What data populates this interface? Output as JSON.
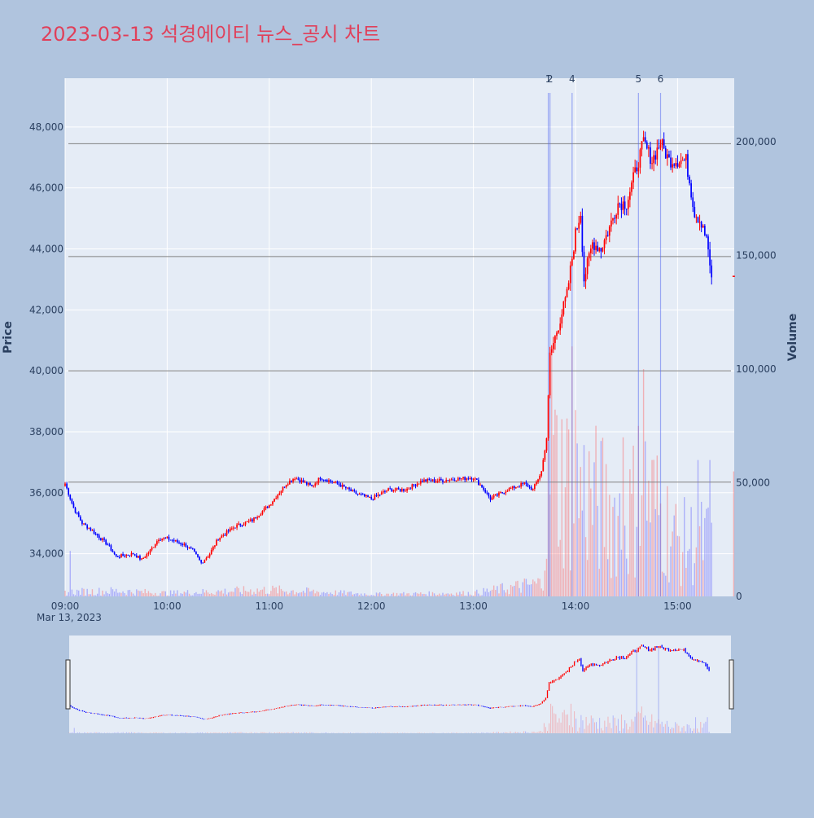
{
  "chart_data": {
    "type": "candlestick",
    "title": "2023-03-13 석경에이티 뉴스_공시 차트",
    "date_label": "Mar 13, 2023",
    "ylabel": "Price",
    "y2label": "Volume",
    "ylim": [
      32600,
      49600
    ],
    "y2lim": [
      0,
      228000
    ],
    "time_range": [
      "09:00",
      "15:33"
    ],
    "x_ticks": [
      "09:00",
      "10:00",
      "11:00",
      "12:00",
      "13:00",
      "14:00",
      "15:00"
    ],
    "y_ticks": [
      "34,000",
      "36,000",
      "38,000",
      "40,000",
      "42,000",
      "44,000",
      "46,000",
      "48,000"
    ],
    "y_tick_values": [
      34000,
      36000,
      38000,
      40000,
      42000,
      44000,
      46000,
      48000
    ],
    "y2_ticks": [
      "0",
      "50,000",
      "100,000",
      "150,000",
      "200,000"
    ],
    "y2_tick_values": [
      0,
      50000,
      100000,
      150000,
      200000
    ],
    "up_color": "#ff0000",
    "down_color": "#0000ff",
    "price_keypoints": [
      [
        "09:00",
        36300
      ],
      [
        "09:05",
        35500
      ],
      [
        "09:10",
        35000
      ],
      [
        "09:15",
        34800
      ],
      [
        "09:25",
        34300
      ],
      [
        "09:30",
        33900
      ],
      [
        "09:40",
        34000
      ],
      [
        "09:45",
        33800
      ],
      [
        "09:50",
        34100
      ],
      [
        "09:55",
        34500
      ],
      [
        "10:00",
        34500
      ],
      [
        "10:10",
        34300
      ],
      [
        "10:15",
        34100
      ],
      [
        "10:20",
        33700
      ],
      [
        "10:25",
        34000
      ],
      [
        "10:30",
        34500
      ],
      [
        "10:40",
        34900
      ],
      [
        "10:50",
        35100
      ],
      [
        "11:00",
        35600
      ],
      [
        "11:10",
        36300
      ],
      [
        "11:15",
        36500
      ],
      [
        "11:25",
        36200
      ],
      [
        "11:30",
        36500
      ],
      [
        "11:40",
        36300
      ],
      [
        "11:50",
        36000
      ],
      [
        "12:00",
        35800
      ],
      [
        "12:10",
        36100
      ],
      [
        "12:20",
        36100
      ],
      [
        "12:30",
        36400
      ],
      [
        "12:40",
        36400
      ],
      [
        "13:00",
        36500
      ],
      [
        "13:05",
        36200
      ],
      [
        "13:10",
        35800
      ],
      [
        "13:20",
        36100
      ],
      [
        "13:30",
        36300
      ],
      [
        "13:35",
        36100
      ],
      [
        "13:40",
        36700
      ],
      [
        "13:43",
        37800
      ],
      [
        "13:45",
        40500
      ],
      [
        "13:50",
        41500
      ],
      [
        "13:55",
        42500
      ],
      [
        "14:00",
        44500
      ],
      [
        "14:03",
        45200
      ],
      [
        "14:05",
        43000
      ],
      [
        "14:10",
        44200
      ],
      [
        "14:15",
        44000
      ],
      [
        "14:20",
        44700
      ],
      [
        "14:25",
        45500
      ],
      [
        "14:30",
        45500
      ],
      [
        "14:35",
        46500
      ],
      [
        "14:40",
        47500
      ],
      [
        "14:45",
        46900
      ],
      [
        "14:50",
        47500
      ],
      [
        "14:55",
        46900
      ],
      [
        "15:00",
        46900
      ],
      [
        "15:05",
        46900
      ],
      [
        "15:10",
        45200
      ],
      [
        "15:15",
        44800
      ],
      [
        "15:18",
        44000
      ],
      [
        "15:20",
        42900
      ]
    ],
    "last_price": 43100,
    "news_markers": [
      {
        "label": "1",
        "time": "13:44"
      },
      {
        "label": "2",
        "time": "13:45"
      },
      {
        "label": "4",
        "time": "13:58"
      },
      {
        "label": "5",
        "time": "14:37"
      },
      {
        "label": "6",
        "time": "14:50"
      }
    ],
    "horizontal_levels": [
      36350,
      40000,
      43750,
      47450
    ],
    "volume_profile": [
      [
        "09:00",
        2000
      ],
      [
        "09:30",
        2500
      ],
      [
        "10:00",
        1500
      ],
      [
        "11:00",
        3000
      ],
      [
        "12:00",
        1000
      ],
      [
        "13:00",
        1500
      ],
      [
        "13:40",
        6000
      ],
      [
        "13:45",
        60000
      ],
      [
        "14:00",
        50000
      ],
      [
        "14:30",
        35000
      ],
      [
        "14:40",
        50000
      ],
      [
        "15:00",
        25000
      ],
      [
        "15:20",
        25000
      ]
    ],
    "volume_spikes": [
      [
        "09:03",
        20000
      ],
      [
        "13:46",
        110000
      ],
      [
        "13:58",
        110000
      ],
      [
        "14:00",
        82000
      ],
      [
        "14:28",
        70000
      ],
      [
        "14:37",
        75000
      ],
      [
        "14:40",
        100000
      ],
      [
        "15:12",
        60000
      ],
      [
        "15:19",
        60000
      ],
      [
        "15:33",
        55000
      ]
    ]
  }
}
